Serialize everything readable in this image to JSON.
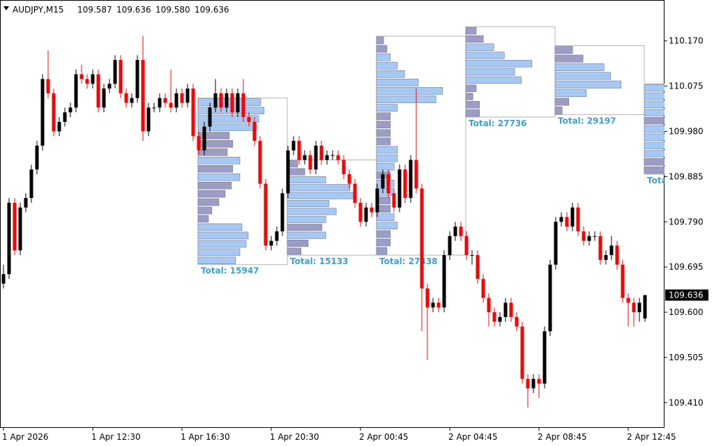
{
  "chart_data": {
    "type": "candlestick",
    "header": {
      "symbol": "AUDJPY,M15",
      "quote": [
        "109.587",
        "109.636",
        "109.580",
        "109.636"
      ]
    },
    "ylim": [
      109.357,
      110.256
    ],
    "yticks": [
      {
        "value": 110.17,
        "label": "110.170"
      },
      110.075,
      {
        "value": 109.98,
        "label": "109.980"
      },
      109.885,
      {
        "value": 109.79,
        "label": "109.790"
      },
      109.695,
      {
        "value": 109.6,
        "label": "109.600"
      },
      109.505,
      {
        "value": 109.41,
        "label": "109.410"
      }
    ],
    "current_price": 109.636,
    "up_color": "#000000",
    "down_color": "#ff0000",
    "categories": [
      "1 Apr 2026",
      null,
      null,
      null,
      null,
      null,
      null,
      null,
      null,
      null,
      null,
      null,
      null,
      null,
      null,
      null,
      "1 Apr 12:30",
      null,
      null,
      null,
      null,
      null,
      null,
      null,
      null,
      null,
      null,
      null,
      null,
      null,
      null,
      null,
      "1 Apr 16:30",
      null,
      null,
      null,
      null,
      null,
      null,
      null,
      null,
      null,
      null,
      null,
      null,
      null,
      null,
      null,
      "1 Apr 20:30",
      null,
      null,
      null,
      null,
      null,
      null,
      null,
      null,
      null,
      null,
      null,
      null,
      null,
      null,
      null,
      "2 Apr 00:45",
      null,
      null,
      null,
      null,
      null,
      null,
      null,
      null,
      null,
      null,
      null,
      null,
      null,
      null,
      null,
      "2 Apr 04:45",
      null,
      null,
      null,
      null,
      null,
      null,
      null,
      null,
      null,
      null,
      null,
      null,
      null,
      null,
      null,
      "2 Apr 08:45",
      null,
      null,
      null,
      null,
      null,
      null,
      null,
      null,
      null,
      null,
      null,
      null,
      null,
      null,
      null,
      "2 Apr 12:45",
      null,
      null,
      null
    ],
    "ohlc": [
      [
        109.66,
        109.7,
        109.65,
        109.68
      ],
      [
        109.68,
        109.84,
        109.67,
        109.83
      ],
      [
        109.83,
        109.84,
        109.72,
        109.73
      ],
      [
        109.73,
        109.83,
        109.72,
        109.82
      ],
      [
        109.82,
        109.85,
        109.81,
        109.84
      ],
      [
        109.84,
        109.91,
        109.83,
        109.9
      ],
      [
        109.9,
        109.96,
        109.89,
        109.95
      ],
      [
        109.95,
        110.1,
        109.94,
        110.09
      ],
      [
        110.09,
        110.15,
        110.05,
        110.06
      ],
      [
        110.06,
        110.07,
        109.97,
        109.98
      ],
      [
        109.98,
        110.01,
        109.97,
        110.0
      ],
      [
        110.0,
        110.03,
        109.99,
        110.02
      ],
      [
        110.02,
        110.04,
        110.01,
        110.03
      ],
      [
        110.03,
        110.11,
        110.02,
        110.1
      ],
      [
        110.1,
        110.12,
        110.08,
        110.09
      ],
      [
        110.09,
        110.1,
        110.07,
        110.08
      ],
      [
        110.08,
        110.11,
        110.07,
        110.1
      ],
      [
        110.1,
        110.11,
        110.02,
        110.03
      ],
      [
        110.03,
        110.08,
        110.02,
        110.07
      ],
      [
        110.07,
        110.09,
        110.06,
        110.08
      ],
      [
        110.08,
        110.14,
        110.07,
        110.13
      ],
      [
        110.13,
        110.14,
        110.05,
        110.06
      ],
      [
        110.06,
        110.07,
        110.03,
        110.04
      ],
      [
        110.04,
        110.06,
        110.03,
        110.05
      ],
      [
        110.05,
        110.14,
        110.04,
        110.13
      ],
      [
        110.13,
        110.18,
        109.96,
        109.98
      ],
      [
        109.98,
        110.04,
        109.97,
        110.03
      ],
      [
        110.03,
        110.04,
        110.02,
        110.03
      ],
      [
        110.03,
        110.06,
        110.02,
        110.05
      ],
      [
        110.05,
        110.06,
        110.03,
        110.04
      ],
      [
        110.04,
        110.11,
        110.02,
        110.03
      ],
      [
        110.03,
        110.07,
        110.02,
        110.06
      ],
      [
        110.06,
        110.07,
        110.03,
        110.04
      ],
      [
        110.04,
        110.08,
        110.03,
        110.07
      ],
      [
        110.07,
        110.08,
        109.96,
        109.97
      ],
      [
        109.97,
        109.98,
        109.93,
        109.94
      ],
      [
        109.94,
        110.0,
        109.93,
        109.99
      ],
      [
        109.99,
        110.04,
        109.98,
        110.03
      ],
      [
        110.03,
        110.09,
        110.02,
        110.06
      ],
      [
        110.06,
        110.07,
        110.02,
        110.03
      ],
      [
        110.03,
        110.07,
        110.02,
        110.06
      ],
      [
        110.06,
        110.07,
        110.01,
        110.02
      ],
      [
        110.02,
        110.07,
        110.01,
        110.06
      ],
      [
        110.06,
        110.09,
        110.0,
        110.01
      ],
      [
        110.01,
        110.02,
        109.99,
        110.0
      ],
      [
        110.0,
        110.01,
        109.95,
        109.96
      ],
      [
        109.96,
        109.97,
        109.86,
        109.87
      ],
      [
        109.87,
        109.88,
        109.73,
        109.74
      ],
      [
        109.74,
        109.76,
        109.73,
        109.75
      ],
      [
        109.75,
        109.78,
        109.74,
        109.77
      ],
      [
        109.77,
        109.86,
        109.76,
        109.85
      ],
      [
        109.85,
        109.95,
        109.84,
        109.94
      ],
      [
        109.94,
        109.97,
        109.93,
        109.96
      ],
      [
        109.96,
        109.97,
        109.91,
        109.92
      ],
      [
        109.92,
        109.94,
        109.91,
        109.93
      ],
      [
        109.93,
        109.94,
        109.89,
        109.9
      ],
      [
        109.9,
        109.96,
        109.89,
        109.95
      ],
      [
        109.95,
        109.96,
        109.91,
        109.92
      ],
      [
        109.92,
        109.94,
        109.91,
        109.93
      ],
      [
        109.93,
        109.94,
        109.92,
        109.93
      ],
      [
        109.93,
        109.94,
        109.91,
        109.92
      ],
      [
        109.92,
        109.93,
        109.88,
        109.89
      ],
      [
        109.89,
        109.9,
        109.86,
        109.87
      ],
      [
        109.87,
        109.88,
        109.82,
        109.83
      ],
      [
        109.83,
        109.84,
        109.78,
        109.79
      ],
      [
        109.79,
        109.83,
        109.78,
        109.82
      ],
      [
        109.82,
        109.83,
        109.8,
        109.81
      ],
      [
        109.81,
        109.87,
        109.8,
        109.86
      ],
      [
        109.86,
        109.9,
        109.85,
        109.89
      ],
      [
        109.89,
        109.9,
        109.84,
        109.85
      ],
      [
        109.85,
        109.86,
        109.81,
        109.82
      ],
      [
        109.82,
        109.91,
        109.81,
        109.9
      ],
      [
        109.9,
        109.91,
        109.83,
        109.84
      ],
      [
        109.84,
        109.93,
        109.83,
        109.92
      ],
      [
        109.92,
        110.07,
        109.85,
        109.86
      ],
      [
        109.86,
        109.87,
        109.56,
        109.65
      ],
      [
        109.65,
        109.66,
        109.5,
        109.61
      ],
      [
        109.61,
        109.63,
        109.6,
        109.62
      ],
      [
        109.62,
        109.63,
        109.6,
        109.61
      ],
      [
        109.61,
        109.73,
        109.6,
        109.72
      ],
      [
        109.72,
        109.77,
        109.71,
        109.76
      ],
      [
        109.76,
        109.79,
        109.75,
        109.78
      ],
      [
        109.78,
        109.79,
        109.75,
        109.76
      ],
      [
        109.76,
        109.77,
        109.71,
        109.72
      ],
      [
        109.72,
        109.73,
        109.7,
        109.72
      ],
      [
        109.72,
        109.73,
        109.66,
        109.67
      ],
      [
        109.67,
        109.68,
        109.62,
        109.63
      ],
      [
        109.63,
        109.64,
        109.57,
        109.6
      ],
      [
        109.6,
        109.61,
        109.57,
        109.58
      ],
      [
        109.58,
        109.6,
        109.57,
        109.59
      ],
      [
        109.59,
        109.63,
        109.58,
        109.62
      ],
      [
        109.62,
        109.63,
        109.58,
        109.59
      ],
      [
        109.59,
        109.6,
        109.56,
        109.57
      ],
      [
        109.57,
        109.58,
        109.45,
        109.46
      ],
      [
        109.46,
        109.47,
        109.4,
        109.44
      ],
      [
        109.44,
        109.47,
        109.43,
        109.46
      ],
      [
        109.46,
        109.47,
        109.42,
        109.45
      ],
      [
        109.45,
        109.57,
        109.44,
        109.56
      ],
      [
        109.56,
        109.71,
        109.55,
        109.7
      ],
      [
        109.7,
        109.8,
        109.69,
        109.79
      ],
      [
        109.79,
        109.81,
        109.78,
        109.8
      ],
      [
        109.8,
        109.81,
        109.77,
        109.78
      ],
      [
        109.78,
        109.83,
        109.77,
        109.82
      ],
      [
        109.82,
        109.83,
        109.76,
        109.77
      ],
      [
        109.77,
        109.78,
        109.74,
        109.75
      ],
      [
        109.75,
        109.77,
        109.74,
        109.76
      ],
      [
        109.76,
        109.77,
        109.75,
        109.76
      ],
      [
        109.76,
        109.77,
        109.7,
        109.71
      ],
      [
        109.71,
        109.73,
        109.7,
        109.72
      ],
      [
        109.72,
        109.76,
        109.71,
        109.74
      ],
      [
        109.74,
        109.75,
        109.69,
        109.7
      ],
      [
        109.7,
        109.71,
        109.62,
        109.63
      ],
      [
        109.63,
        109.64,
        109.57,
        109.62
      ],
      [
        109.62,
        109.63,
        109.57,
        109.6
      ],
      [
        109.6,
        109.63,
        109.58,
        109.62
      ],
      [
        109.587,
        109.636,
        109.58,
        109.636
      ]
    ],
    "profile_label": "Total:",
    "profile_colors": {
      "value_area": "#a8c8f4",
      "outside": "#9c9cc4",
      "border": "#b4b4b4",
      "label": "#3aa0d4"
    },
    "profiles": [
      {
        "start": 35,
        "end": 51,
        "top": 110.05,
        "bottom": 109.7,
        "total": 15947,
        "levels": [
          1500,
          1580,
          1450,
          1400,
          750,
          830,
          700,
          1000,
          830,
          1000,
          800,
          650,
          500,
          330,
          250,
          1050,
          1200,
          1150,
          1000,
          900
        ]
      },
      {
        "start": 51,
        "end": 67,
        "top": 109.92,
        "bottom": 109.72,
        "total": 15133,
        "levels": [
          250,
          420,
          920,
          1500,
          1580,
          1000,
          1170,
          920,
          830,
          920,
          500,
          330
        ]
      },
      {
        "start": 67,
        "end": 83,
        "top": 110.18,
        "bottom": 109.72,
        "total": 27438,
        "levels": [
          170,
          250,
          330,
          500,
          670,
          1000,
          1580,
          1420,
          500,
          330,
          330,
          330,
          330,
          500,
          500,
          420,
          330,
          420,
          420,
          330,
          330,
          420,
          500,
          330,
          330,
          250
        ]
      },
      {
        "start": 83,
        "end": 99,
        "top": 110.2,
        "bottom": 110.01,
        "total": 27736,
        "levels": [
          250,
          420,
          670,
          920,
          1580,
          1170,
          1330,
          250,
          170,
          330,
          330
        ]
      },
      {
        "start": 99,
        "end": 115,
        "top": 110.16,
        "bottom": 110.015,
        "total": 29197,
        "levels": [
          420,
          670,
          1170,
          1330,
          1580,
          750,
          330,
          170
        ]
      },
      {
        "start": 115,
        "end": 131,
        "top": 110.08,
        "bottom": 109.89,
        "total": null,
        "levels": [
          500,
          500,
          500,
          500,
          480,
          500,
          500,
          500,
          500,
          500,
          500
        ]
      }
    ]
  }
}
